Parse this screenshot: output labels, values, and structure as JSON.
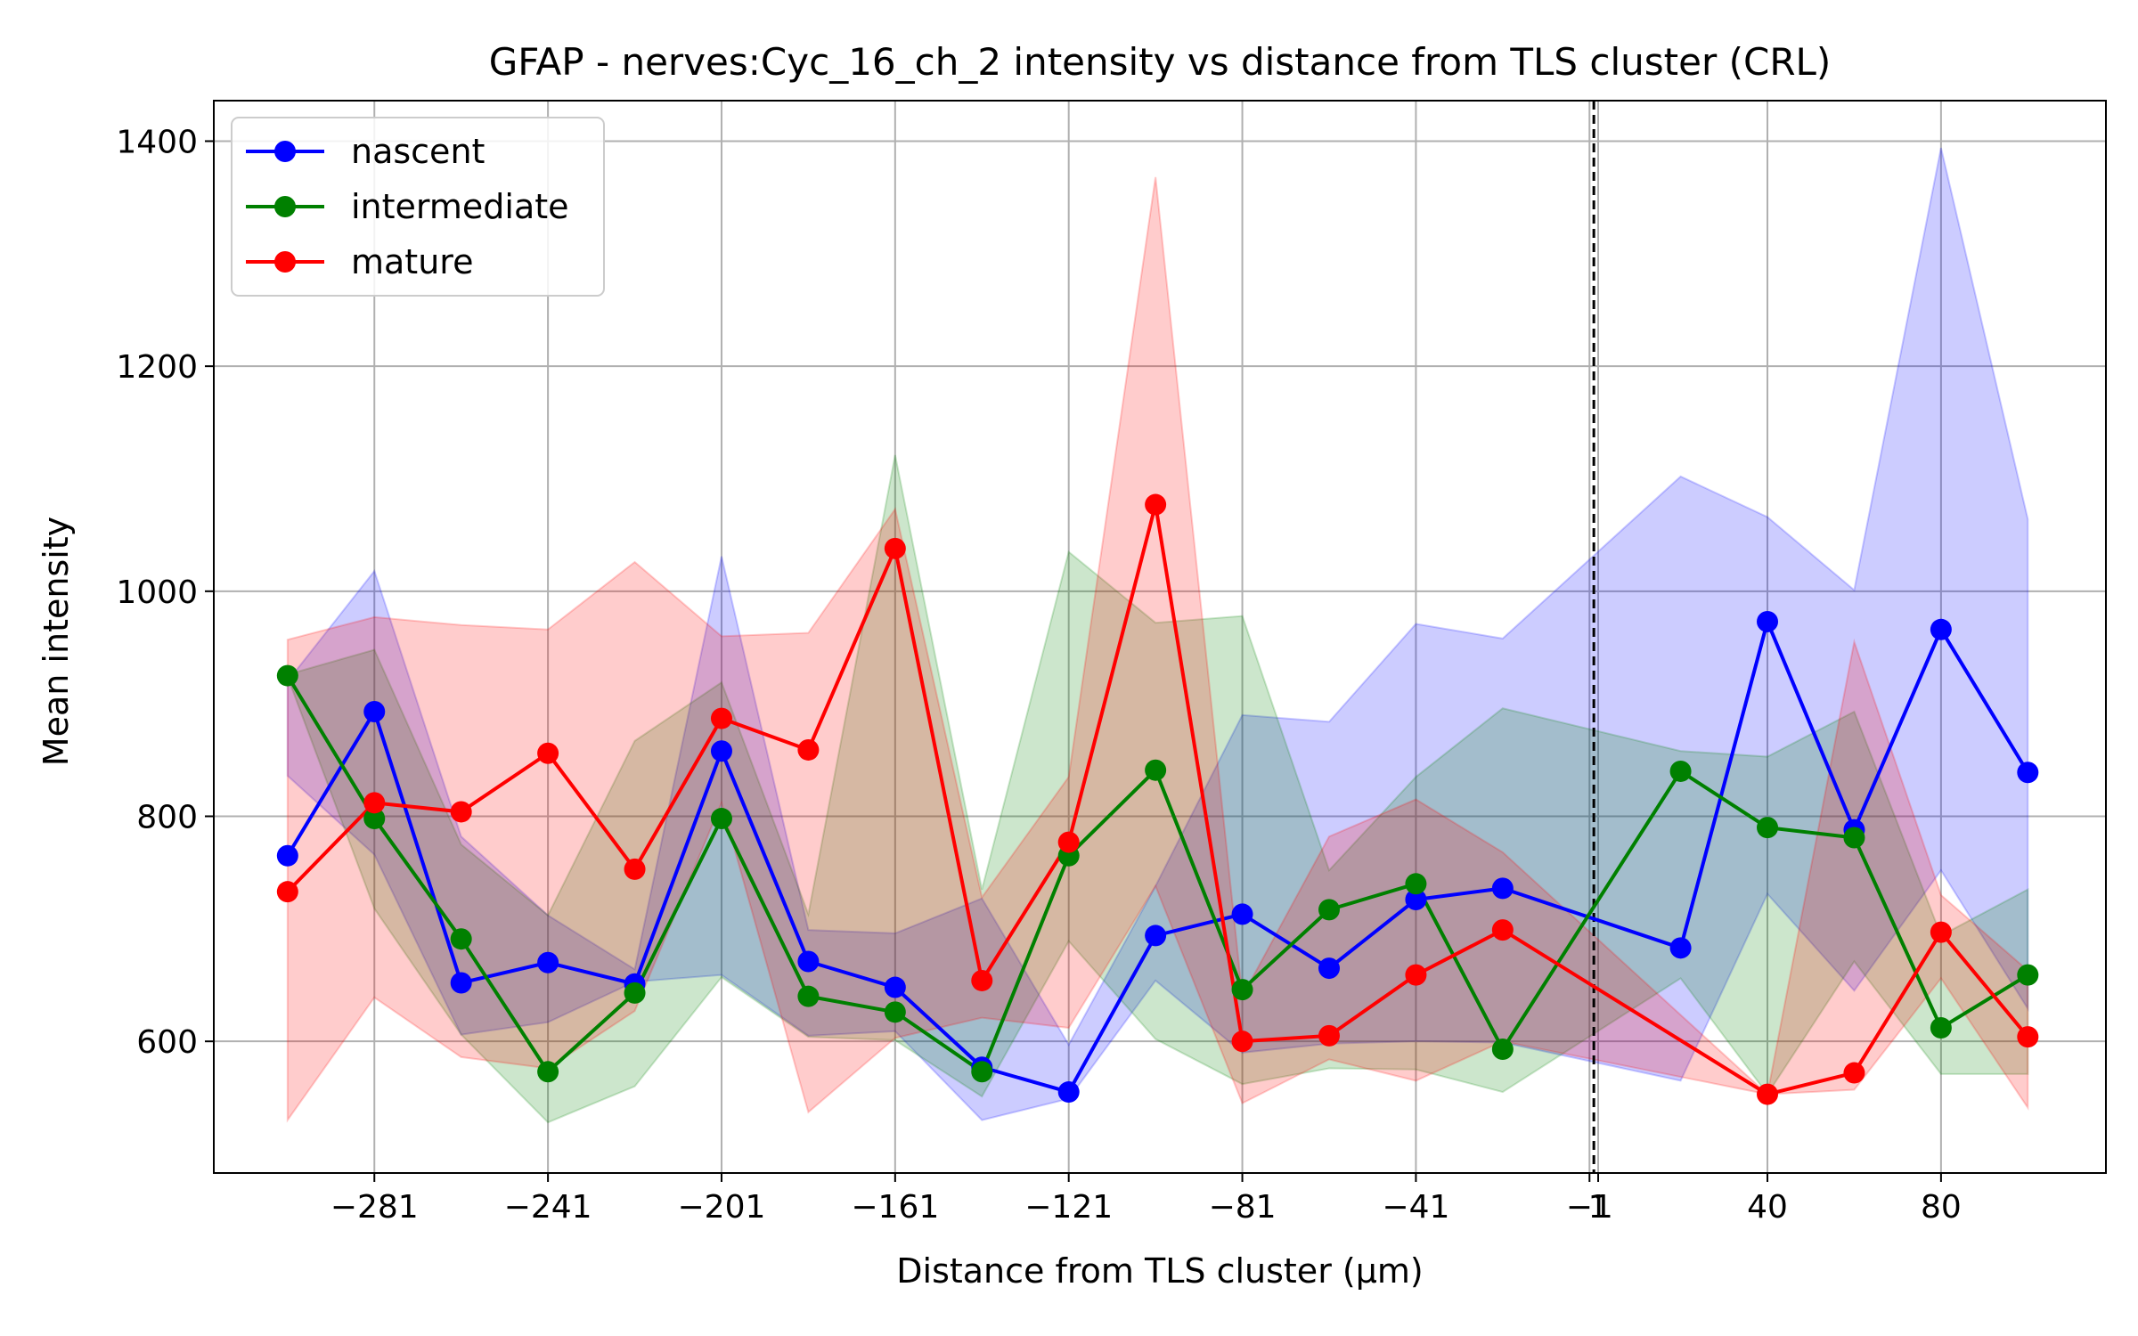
{
  "chart_data": {
    "type": "line",
    "title": "GFAP - nerves:Cyc_16_ch_2 intensity vs distance from TLS cluster (CRL)",
    "xlabel": "Distance from TLS cluster (μm)",
    "ylabel": "Mean intensity",
    "xlim": [
      -318,
      118
    ],
    "ylim": [
      483,
      1436
    ],
    "xticks": [
      -281,
      -241,
      -201,
      -161,
      -121,
      -81,
      -41,
      -1,
      1,
      40,
      80
    ],
    "xtick_labels": [
      "−281",
      "−241",
      "−201",
      "−161",
      "−121",
      "−81",
      "−41",
      "−1",
      "1",
      "40",
      "80"
    ],
    "yticks": [
      600,
      800,
      1000,
      1200,
      1400
    ],
    "ytick_labels": [
      "600",
      "800",
      "1000",
      "1200",
      "1400"
    ],
    "grid": true,
    "legend_position": "top-left",
    "vline_x": 0,
    "series": [
      {
        "name": "nascent",
        "color": "#0000ff",
        "x": [
          -301,
          -281,
          -261,
          -241,
          -221,
          -201,
          -181,
          -161,
          -141,
          -121,
          -101,
          -81,
          -61,
          -41,
          -21,
          20,
          40,
          60,
          80,
          100
        ],
        "y": [
          765,
          893,
          652,
          670,
          651,
          858,
          671,
          648,
          577,
          555,
          694,
          713,
          665,
          726,
          736,
          683,
          973,
          788,
          966,
          839
        ],
        "lower": [
          836,
          766,
          606,
          617,
          653,
          659,
          605,
          609,
          530,
          549,
          654,
          590,
          598,
          600,
          599,
          565,
          731,
          645,
          752,
          629
        ],
        "upper": [
          920,
          1018,
          782,
          712,
          664,
          1031,
          699,
          696,
          727,
          597,
          738,
          890,
          884,
          971,
          958,
          1102,
          1066,
          1001,
          1394,
          1064
        ]
      },
      {
        "name": "intermediate",
        "color": "#008000",
        "x": [
          -301,
          -281,
          -261,
          -241,
          -221,
          -201,
          -181,
          -161,
          -141,
          -121,
          -101,
          -81,
          -61,
          -41,
          -21,
          20,
          40,
          60,
          80,
          100
        ],
        "y": [
          925,
          798,
          691,
          573,
          643,
          798,
          640,
          626,
          573,
          765,
          841,
          646,
          717,
          740,
          593,
          840,
          790,
          781,
          612,
          659
        ],
        "lower": [
          924,
          718,
          606,
          528,
          560,
          657,
          604,
          601,
          551,
          689,
          602,
          562,
          576,
          575,
          555,
          656,
          553,
          671,
          571,
          571
        ],
        "upper": [
          926,
          948,
          775,
          712,
          867,
          919,
          713,
          1121,
          735,
          1035,
          972,
          978,
          752,
          835,
          896,
          858,
          853,
          893,
          694,
          735
        ]
      },
      {
        "name": "mature",
        "color": "#ff0000",
        "x": [
          -301,
          -281,
          -261,
          -241,
          -221,
          -201,
          -181,
          -161,
          -141,
          -121,
          -101,
          -81,
          -61,
          -41,
          -21,
          40,
          60,
          80,
          100
        ],
        "y": [
          733,
          812,
          804,
          856,
          753,
          887,
          859,
          1038,
          654,
          777,
          1077,
          600,
          605,
          659,
          699,
          553,
          572,
          697,
          604
        ],
        "lower": [
          530,
          639,
          586,
          576,
          627,
          812,
          537,
          603,
          621,
          612,
          738,
          545,
          584,
          565,
          600,
          553,
          557,
          656,
          541
        ],
        "upper": [
          957,
          977,
          970,
          966,
          1026,
          960,
          963,
          1073,
          728,
          835,
          1368,
          640,
          782,
          815,
          768,
          553,
          955,
          730,
          663
        ]
      }
    ]
  }
}
